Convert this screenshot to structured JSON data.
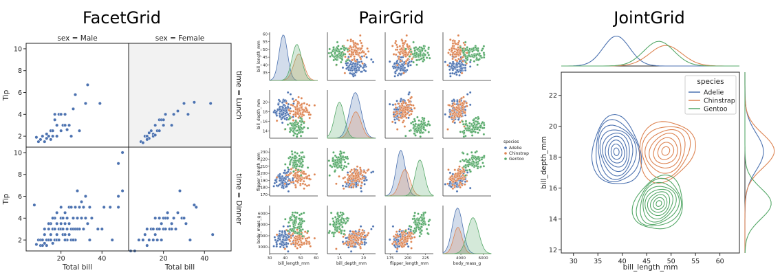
{
  "colors": {
    "blue": "#4c72b0",
    "orange": "#dd8452",
    "green": "#55a868",
    "facet_shade": "#f2f2f2"
  },
  "chart_data": [
    {
      "type": "scatter",
      "title": "FacetGrid",
      "col_titles": [
        "sex = Male",
        "sex = Female"
      ],
      "row_titles": [
        "time = Lunch",
        "time = Dinner"
      ],
      "xlabel": "Total bill",
      "ylabel": "Tip",
      "xlim": [
        3,
        53
      ],
      "ylim": [
        1,
        10.5
      ],
      "xticks": [
        20,
        40
      ],
      "yticks": [
        2,
        4,
        6,
        8,
        10
      ],
      "panels": [
        {
          "row": 0,
          "col": 0,
          "points": [
            [
              8,
              1.9
            ],
            [
              9,
              1.5
            ],
            [
              10,
              1.7
            ],
            [
              11,
              2
            ],
            [
              12,
              1.5
            ],
            [
              13,
              2.2
            ],
            [
              14,
              2
            ],
            [
              15,
              1.7
            ],
            [
              15,
              2.5
            ],
            [
              16,
              2.5
            ],
            [
              17,
              3.5
            ],
            [
              17,
              4
            ],
            [
              18,
              2
            ],
            [
              19,
              4
            ],
            [
              20,
              2.5
            ],
            [
              20,
              4
            ],
            [
              21,
              3
            ],
            [
              22,
              3
            ],
            [
              22,
              4
            ],
            [
              23,
              2.6
            ],
            [
              24,
              3
            ],
            [
              25,
              2
            ],
            [
              26,
              4.5
            ],
            [
              27,
              5.8
            ],
            [
              29,
              2.5
            ],
            [
              33,
              6.7
            ],
            [
              32,
              5
            ],
            [
              39,
              5
            ],
            [
              12,
              1.5
            ],
            [
              13,
              1.8
            ],
            [
              16,
              2
            ],
            [
              18,
              3
            ]
          ]
        },
        {
          "row": 0,
          "col": 1,
          "points": [
            [
              9,
              1.5
            ],
            [
              10,
              1.4
            ],
            [
              11,
              2
            ],
            [
              12,
              2
            ],
            [
              13,
              1.8
            ],
            [
              14,
              2.5
            ],
            [
              15,
              2.2
            ],
            [
              15,
              2
            ],
            [
              16,
              3
            ],
            [
              17,
              2.5
            ],
            [
              18,
              3.5
            ],
            [
              18,
              2.5
            ],
            [
              19,
              3.5
            ],
            [
              20,
              3.5
            ],
            [
              20,
              3
            ],
            [
              21,
              4
            ],
            [
              24,
              3
            ],
            [
              25,
              4
            ],
            [
              27,
              4.3
            ],
            [
              30,
              5
            ],
            [
              32,
              4
            ],
            [
              35,
              5.1
            ],
            [
              43,
              5
            ],
            [
              12,
              1.7
            ],
            [
              16,
              2.1
            ],
            [
              13,
              2.3
            ]
          ]
        },
        {
          "row": 1,
          "col": 0,
          "points": [
            [
              7,
              5.2
            ],
            [
              8,
              1.6
            ],
            [
              9,
              2
            ],
            [
              10,
              1.5
            ],
            [
              10,
              2
            ],
            [
              11,
              1.5
            ],
            [
              11,
              2
            ],
            [
              12,
              1.7
            ],
            [
              12,
              2.5
            ],
            [
              13,
              2
            ],
            [
              13,
              1.5
            ],
            [
              14,
              2
            ],
            [
              14,
              3
            ],
            [
              15,
              2.5
            ],
            [
              15,
              3.5
            ],
            [
              15,
              2
            ],
            [
              16,
              1.7
            ],
            [
              16,
              3
            ],
            [
              17,
              2
            ],
            [
              17,
              3
            ],
            [
              17,
              4
            ],
            [
              18,
              2.5
            ],
            [
              18,
              3.5
            ],
            [
              18,
              2
            ],
            [
              19,
              3
            ],
            [
              19,
              2
            ],
            [
              20,
              3
            ],
            [
              20,
              4
            ],
            [
              20,
              3.5
            ],
            [
              21,
              4
            ],
            [
              21,
              3
            ],
            [
              21,
              2.5
            ],
            [
              22,
              2.5
            ],
            [
              22,
              3.5
            ],
            [
              22,
              4.5
            ],
            [
              23,
              3
            ],
            [
              23,
              2
            ],
            [
              23,
              4
            ],
            [
              24,
              5
            ],
            [
              24,
              3.5
            ],
            [
              24,
              2.5
            ],
            [
              25,
              3
            ],
            [
              25,
              2
            ],
            [
              25,
              5
            ],
            [
              26,
              3
            ],
            [
              26,
              4
            ],
            [
              27,
              5
            ],
            [
              27,
              3
            ],
            [
              27,
              2
            ],
            [
              28,
              4
            ],
            [
              28,
              3
            ],
            [
              28,
              6.5
            ],
            [
              29,
              3
            ],
            [
              29,
              5
            ],
            [
              30,
              4
            ],
            [
              30,
              5.5
            ],
            [
              31,
              3
            ],
            [
              31,
              5
            ],
            [
              32,
              6
            ],
            [
              32,
              4
            ],
            [
              33,
              3.5
            ],
            [
              34,
              2
            ],
            [
              34,
              5
            ],
            [
              35,
              4
            ],
            [
              38,
              3
            ],
            [
              40,
              3
            ],
            [
              41,
              5
            ],
            [
              44,
              5
            ],
            [
              45,
              2
            ],
            [
              48,
              9
            ],
            [
              48,
              6
            ],
            [
              48,
              5
            ],
            [
              50,
              10
            ],
            [
              50,
              6.5
            ],
            [
              14,
              3.5
            ],
            [
              16,
              4
            ],
            [
              20,
              5
            ],
            [
              26,
              2
            ],
            [
              18,
              4.5
            ],
            [
              22,
              2
            ],
            [
              12,
              3
            ]
          ]
        },
        {
          "row": 1,
          "col": 1,
          "points": [
            [
              4,
              1
            ],
            [
              6,
              1
            ],
            [
              8,
              2
            ],
            [
              10,
              2
            ],
            [
              11,
              2.5
            ],
            [
              12,
              3
            ],
            [
              13,
              2
            ],
            [
              14,
              3
            ],
            [
              15,
              2
            ],
            [
              15,
              3
            ],
            [
              16,
              2.5
            ],
            [
              16,
              4
            ],
            [
              17,
              3
            ],
            [
              17,
              2
            ],
            [
              18,
              3
            ],
            [
              18,
              4
            ],
            [
              19,
              3.5
            ],
            [
              19,
              2
            ],
            [
              20,
              3
            ],
            [
              20,
              4
            ],
            [
              21,
              3
            ],
            [
              21,
              4
            ],
            [
              22,
              4
            ],
            [
              22,
              4.5
            ],
            [
              23,
              3
            ],
            [
              24,
              3.5
            ],
            [
              24,
              3
            ],
            [
              25,
              4
            ],
            [
              26,
              3
            ],
            [
              27,
              4.5
            ],
            [
              28,
              6.5
            ],
            [
              29,
              4
            ],
            [
              30,
              4
            ],
            [
              31,
              3.5
            ],
            [
              33,
              2
            ],
            [
              35,
              5.2
            ],
            [
              36,
              5
            ],
            [
              44,
              2.5
            ],
            [
              12,
              1.5
            ]
          ]
        }
      ]
    },
    {
      "type": "scatter",
      "title": "PairGrid",
      "variables": [
        "bill_length_mm",
        "bill_depth_mm",
        "flipper_length_mm",
        "body_mass_g"
      ],
      "ranges": [
        [
          30,
          61
        ],
        [
          12.5,
          22.5
        ],
        [
          168,
          236
        ],
        [
          2400,
          6700
        ]
      ],
      "ticks": [
        [
          30,
          40,
          50,
          60
        ],
        [
          15,
          20
        ],
        [
          175,
          200,
          225
        ],
        [
          4000,
          6000
        ]
      ],
      "ylabel_ticks": [
        [
          35,
          40,
          45,
          50,
          55,
          60
        ],
        [
          14,
          16,
          18,
          20
        ],
        [
          170,
          180,
          190,
          200,
          210,
          220,
          230
        ],
        [
          3000,
          4000,
          5000,
          6000
        ]
      ],
      "legend_title": "species",
      "legend": [
        "Adelie",
        "Chinstrap",
        "Gentoo"
      ],
      "series": [
        {
          "name": "Adelie",
          "centers": [
            38.8,
            18.3,
            190,
            3700
          ],
          "spread": [
            2.7,
            1.2,
            6.5,
            460
          ]
        },
        {
          "name": "Chinstrap",
          "centers": [
            48.8,
            18.4,
            196,
            3730
          ],
          "spread": [
            3.3,
            1.1,
            7.1,
            380
          ]
        },
        {
          "name": "Gentoo",
          "centers": [
            47.5,
            15.0,
            217,
            5080
          ],
          "spread": [
            3.1,
            1.0,
            6.5,
            500
          ]
        }
      ]
    },
    {
      "type": "kde",
      "title": "JointGrid",
      "xlabel": "bill_length_mm",
      "ylabel": "bill_depth_mm",
      "xlim": [
        27.5,
        64
      ],
      "ylim": [
        11.8,
        23.5
      ],
      "xticks": [
        30,
        35,
        40,
        45,
        50,
        55,
        60
      ],
      "yticks": [
        12,
        14,
        16,
        18,
        20,
        22
      ],
      "legend_title": "species",
      "legend": [
        "Adelie",
        "Chinstrap",
        "Gentoo"
      ],
      "series": [
        {
          "name": "Adelie",
          "center": [
            38.8,
            18.35
          ],
          "spread": [
            2.7,
            1.2
          ],
          "levels": 9
        },
        {
          "name": "Chinstrap",
          "center": [
            48.9,
            18.4
          ],
          "spread": [
            3.3,
            1.1
          ],
          "levels": 7
        },
        {
          "name": "Gentoo",
          "center": [
            47.5,
            15.0
          ],
          "spread": [
            3.1,
            1.0
          ],
          "levels": 9
        }
      ]
    }
  ]
}
